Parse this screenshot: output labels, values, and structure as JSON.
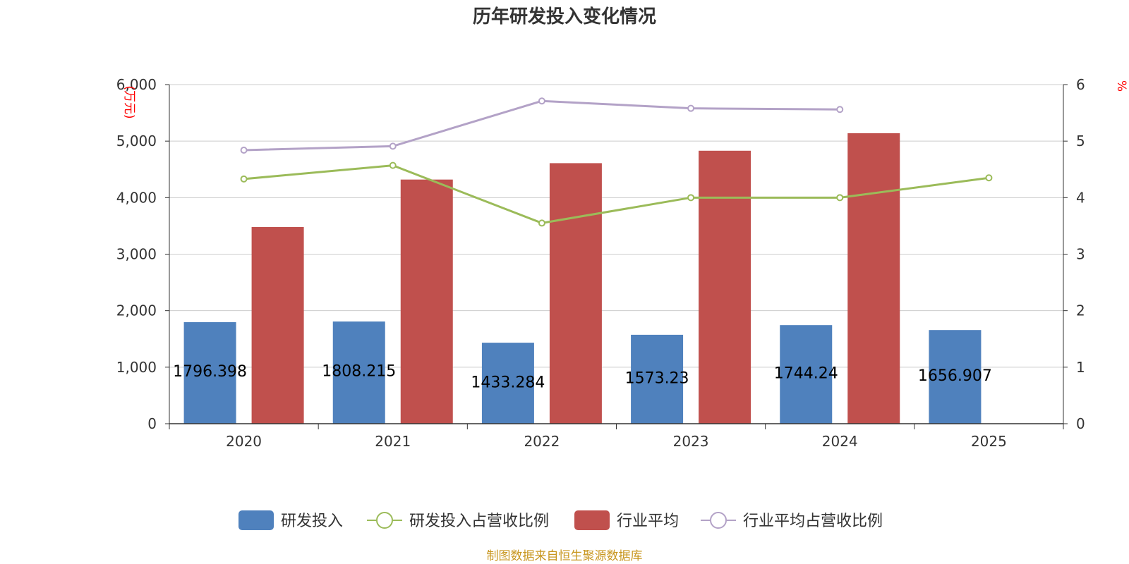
{
  "chart_data": {
    "type": "bar",
    "title": "历年研发投入变化情况",
    "categories": [
      "2020",
      "2021",
      "2022",
      "2023",
      "2024",
      "2025"
    ],
    "y_left": {
      "unit": "(万元)",
      "ylim": [
        0,
        6000
      ],
      "ticks": [
        0,
        1000,
        2000,
        3000,
        4000,
        5000,
        6000
      ],
      "tick_labels": [
        "0",
        "1,000",
        "2,000",
        "3,000",
        "4,000",
        "5,000",
        "6,000"
      ]
    },
    "y_right": {
      "unit": "%",
      "ylim": [
        0,
        6
      ],
      "ticks": [
        0,
        1,
        2,
        3,
        4,
        5,
        6
      ],
      "tick_labels": [
        "0",
        "1",
        "2",
        "3",
        "4",
        "5",
        "6"
      ]
    },
    "grid": true,
    "legend_position": "bottom",
    "series": [
      {
        "name": "研发投入",
        "type": "bar",
        "axis": "left",
        "color": "#4f81bd",
        "values": [
          1796.398,
          1808.215,
          1433.284,
          1573.23,
          1744.24,
          1656.907
        ],
        "labels": [
          "1796.398",
          "1808.215",
          "1433.284",
          "1573.23",
          "1744.24",
          "1656.907"
        ]
      },
      {
        "name": "研发投入占营收比例",
        "type": "line",
        "axis": "right",
        "color": "#9bbb59",
        "values": [
          4.33,
          4.57,
          3.55,
          4.0,
          4.0,
          4.35
        ]
      },
      {
        "name": "行业平均",
        "type": "bar",
        "axis": "left",
        "color": "#c0504d",
        "values": [
          3480,
          4320,
          4610,
          4830,
          5140,
          null
        ]
      },
      {
        "name": "行业平均占营收比例",
        "type": "line",
        "axis": "right",
        "color": "#b3a2c7",
        "values": [
          4.84,
          4.91,
          5.71,
          5.58,
          5.56,
          null
        ]
      }
    ]
  },
  "source": "制图数据来自恒生聚源数据库"
}
